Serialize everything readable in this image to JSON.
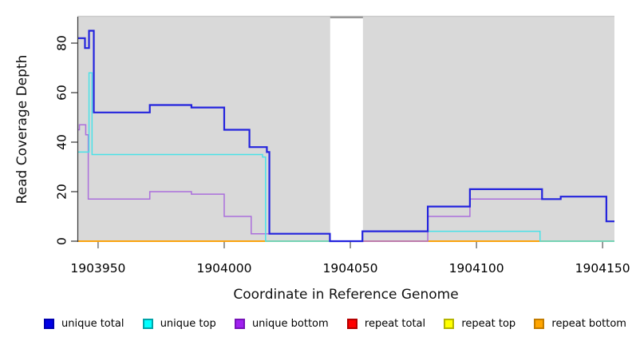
{
  "chart_data": {
    "type": "line",
    "step": true,
    "title": "",
    "xlabel": "Coordinate in Reference Genome",
    "ylabel": "Read Coverage Depth",
    "x_ticks": [
      1903950,
      1904000,
      1904050,
      1904100,
      1904150
    ],
    "y_ticks": [
      0,
      20,
      40,
      60,
      80
    ],
    "xlim": [
      1903941.8,
      1904154.7
    ],
    "ylim": [
      0,
      90.6
    ],
    "x_end": 1904154.7,
    "plot_bg": "#d9d9d9",
    "plot_top_border": "#c9c9c9",
    "axis_color": "#333333",
    "tick_color": "#555555",
    "gap_region": {
      "x_start": 1904042,
      "x_end": 1904055,
      "color": "#ffffff",
      "top_border": "#8a8a8a"
    },
    "grid": false,
    "legend_position": "bottom",
    "series": [
      {
        "name": "repeat total",
        "color": "#e60000",
        "width": 1.4,
        "steps": [
          [
            1903941.8,
            0
          ]
        ]
      },
      {
        "name": "repeat top",
        "color": "#ffee00",
        "width": 1.4,
        "steps": [
          [
            1903941.8,
            0
          ]
        ]
      },
      {
        "name": "repeat bottom",
        "color": "#ffa200",
        "width": 1.6,
        "steps": [
          [
            1903941.8,
            0
          ]
        ]
      },
      {
        "name": "unique bottom",
        "color": "#ab6fdc",
        "width": 1.5,
        "steps": [
          [
            1903941.8,
            45
          ],
          [
            1903942.6,
            47
          ],
          [
            1903945.1,
            43
          ],
          [
            1903946.1,
            17
          ],
          [
            1903970.5,
            20
          ],
          [
            1903987,
            19
          ],
          [
            1904000,
            10
          ],
          [
            1904010.7,
            3
          ],
          [
            1904041.9,
            0
          ],
          [
            1904080.7,
            10
          ],
          [
            1904097.4,
            17
          ],
          [
            1904133.4,
            18
          ],
          [
            1904151.5,
            8
          ]
        ]
      },
      {
        "name": "unique top",
        "color": "#4ae2e8",
        "width": 1.5,
        "steps": [
          [
            1903941.8,
            36
          ],
          [
            1903946.4,
            68
          ],
          [
            1903947.6,
            35
          ],
          [
            1904015.2,
            34
          ],
          [
            1904016.4,
            0
          ],
          [
            1904054.8,
            4
          ],
          [
            1904125.2,
            0
          ]
        ]
      },
      {
        "name": "unique total",
        "color": "#2323dd",
        "width": 2.2,
        "steps": [
          [
            1903941.8,
            82
          ],
          [
            1903944.8,
            78
          ],
          [
            1903946.4,
            85
          ],
          [
            1903948.3,
            52
          ],
          [
            1903970.5,
            55
          ],
          [
            1903987,
            54
          ],
          [
            1904000,
            45
          ],
          [
            1904010,
            38
          ],
          [
            1904016.9,
            36
          ],
          [
            1904017.9,
            3
          ],
          [
            1904041.9,
            0
          ],
          [
            1904054.8,
            4
          ],
          [
            1904080.7,
            14
          ],
          [
            1904097.4,
            21
          ],
          [
            1904126,
            17
          ],
          [
            1904133.4,
            18
          ],
          [
            1904151.5,
            8
          ]
        ]
      }
    ]
  },
  "legend": {
    "items": [
      {
        "label": "unique total",
        "fill": "#0000e6",
        "border": "#0000b0"
      },
      {
        "label": "unique top",
        "fill": "#00ffff",
        "border": "#00a3a8"
      },
      {
        "label": "unique bottom",
        "fill": "#a020f0",
        "border": "#7714b8"
      },
      {
        "label": "repeat total",
        "fill": "#ff0000",
        "border": "#b40000"
      },
      {
        "label": "repeat top",
        "fill": "#ffff00",
        "border": "#b4b400"
      },
      {
        "label": "repeat bottom",
        "fill": "#ffa500",
        "border": "#c27c00"
      }
    ]
  }
}
